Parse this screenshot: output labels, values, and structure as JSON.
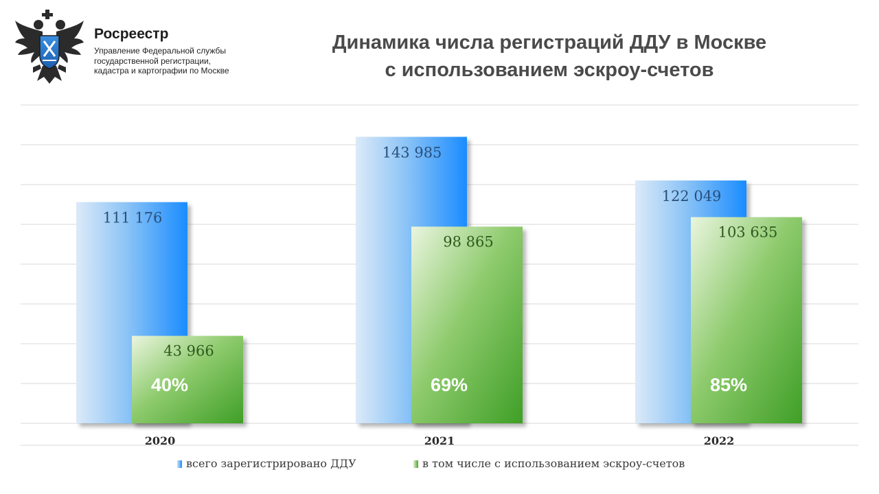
{
  "header": {
    "org_name": "Росреестр",
    "org_desc_lines": [
      "Управление Федеральной службы",
      "государственной регистрации,",
      "кадастра и картографии по Москве"
    ],
    "title_lines": [
      "Динамика числа регистраций ДДУ в Москве",
      "с использованием эскроу-счетов"
    ]
  },
  "colors": {
    "total_bar": "#1a8cff",
    "escrow_bar": "#4ea52f",
    "total_label": "#2a4f7a",
    "escrow_label": "#2e5a1e",
    "grid": "#d9d9d9"
  },
  "chart_data": {
    "type": "bar",
    "categories": [
      "2020",
      "2021",
      "2022"
    ],
    "series": [
      {
        "name": "всего зарегистрировано ДДУ",
        "values": [
          111176,
          143985,
          122049
        ],
        "value_labels": [
          "111 176",
          "143 985",
          "122 049"
        ]
      },
      {
        "name": "в том числе с использованием эскроу-счетов",
        "values": [
          43966,
          98865,
          103635
        ],
        "value_labels": [
          "43 966",
          "98 865",
          "103 635"
        ],
        "share_labels": [
          "40%",
          "69%",
          "85%"
        ]
      }
    ],
    "ylim": [
      0,
      160000
    ],
    "grid": true,
    "legend_position": "bottom",
    "title": "Динамика числа регистраций ДДУ в Москве с использованием эскроу-счетов"
  }
}
